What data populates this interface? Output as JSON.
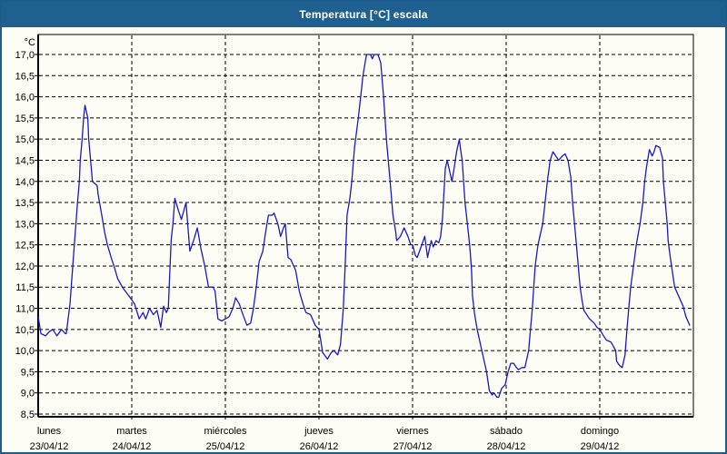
{
  "window": {
    "title": "Temperatura [°C] escala"
  },
  "colors": {
    "titlebar_bg": "#1e6191",
    "window_border": "#1d5c8c",
    "window_bg": "#fdfdf5",
    "line": "#1a1ac0",
    "grid": "#000000",
    "text": "#000000"
  },
  "chart_data": {
    "type": "line",
    "title": "Temperatura [°C] escala",
    "ylabel": "°C",
    "xlabel": "",
    "ylim": [
      8.5,
      17.0
    ],
    "ytick_step": 0.5,
    "ytick_labels": [
      "17,0",
      "16,5",
      "16,0",
      "15,5",
      "15,0",
      "14,5",
      "14,0",
      "13,5",
      "13,0",
      "12,5",
      "12,0",
      "11,5",
      "11,0",
      "10,5",
      "10,0",
      "9,5",
      "9,0",
      "8,5"
    ],
    "y_unit_label": "°C",
    "grid": "dashed-both-axes",
    "legend_position": "none",
    "x_axis_days": [
      {
        "name": "lunes",
        "date": "23/04/12"
      },
      {
        "name": "martes",
        "date": "24/04/12"
      },
      {
        "name": "miércoles",
        "date": "25/04/12"
      },
      {
        "name": "jueves",
        "date": "26/04/12"
      },
      {
        "name": "viernes",
        "date": "27/04/12"
      },
      {
        "name": "sábado",
        "date": "28/04/12"
      },
      {
        "name": "domingo",
        "date": "29/04/12"
      }
    ],
    "x_range_days": [
      0,
      7
    ],
    "series": [
      {
        "name": "Temperatura",
        "color": "#1a1ac0",
        "points": [
          [
            0,
            10.8
          ],
          [
            0.03,
            10.4
          ],
          [
            0.08,
            10.35
          ],
          [
            0.12,
            10.45
          ],
          [
            0.155,
            10.5
          ],
          [
            0.2,
            10.35
          ],
          [
            0.25,
            10.5
          ],
          [
            0.29,
            10.4
          ],
          [
            0.3,
            10.4
          ],
          [
            0.34,
            11.1
          ],
          [
            0.38,
            12.3
          ],
          [
            0.42,
            13.5
          ],
          [
            0.44,
            14.0
          ],
          [
            0.45,
            14.5
          ],
          [
            0.47,
            15.0
          ],
          [
            0.485,
            15.5
          ],
          [
            0.5,
            15.8
          ],
          [
            0.53,
            15.5
          ],
          [
            0.54,
            15.0
          ],
          [
            0.56,
            14.5
          ],
          [
            0.58,
            14.0
          ],
          [
            0.63,
            13.9
          ],
          [
            0.64,
            13.7
          ],
          [
            0.68,
            13.2
          ],
          [
            0.71,
            12.8
          ],
          [
            0.74,
            12.5
          ],
          [
            0.78,
            12.2
          ],
          [
            0.81,
            12.0
          ],
          [
            0.85,
            11.7
          ],
          [
            0.9,
            11.5
          ],
          [
            0.95,
            11.35
          ],
          [
            1.0,
            11.2
          ],
          [
            1.03,
            11.1
          ],
          [
            1.08,
            10.75
          ],
          [
            1.12,
            10.9
          ],
          [
            1.15,
            10.75
          ],
          [
            1.19,
            11.0
          ],
          [
            1.23,
            10.85
          ],
          [
            1.27,
            10.95
          ],
          [
            1.31,
            10.55
          ],
          [
            1.34,
            11.05
          ],
          [
            1.37,
            10.9
          ],
          [
            1.39,
            11.0
          ],
          [
            1.42,
            12.6
          ],
          [
            1.44,
            13.0
          ],
          [
            1.46,
            13.6
          ],
          [
            1.5,
            13.3
          ],
          [
            1.53,
            13.1
          ],
          [
            1.58,
            13.5
          ],
          [
            1.62,
            12.35
          ],
          [
            1.66,
            12.6
          ],
          [
            1.7,
            12.9
          ],
          [
            1.74,
            12.4
          ],
          [
            1.78,
            12.0
          ],
          [
            1.82,
            11.5
          ],
          [
            1.87,
            11.5
          ],
          [
            1.89,
            11.4
          ],
          [
            1.92,
            10.75
          ],
          [
            1.96,
            10.7
          ],
          [
            2.0,
            10.75
          ],
          [
            2.04,
            10.8
          ],
          [
            2.08,
            11.0
          ],
          [
            2.11,
            11.25
          ],
          [
            2.15,
            11.1
          ],
          [
            2.18,
            10.9
          ],
          [
            2.23,
            10.6
          ],
          [
            2.27,
            10.65
          ],
          [
            2.3,
            11.0
          ],
          [
            2.33,
            11.5
          ],
          [
            2.36,
            12.1
          ],
          [
            2.4,
            12.35
          ],
          [
            2.43,
            12.8
          ],
          [
            2.46,
            13.2
          ],
          [
            2.5,
            13.2
          ],
          [
            2.52,
            13.25
          ],
          [
            2.56,
            13.0
          ],
          [
            2.59,
            12.7
          ],
          [
            2.62,
            12.9
          ],
          [
            2.64,
            13.0
          ],
          [
            2.67,
            12.2
          ],
          [
            2.7,
            12.15
          ],
          [
            2.75,
            11.9
          ],
          [
            2.79,
            11.4
          ],
          [
            2.83,
            11.1
          ],
          [
            2.86,
            10.9
          ],
          [
            2.91,
            10.85
          ],
          [
            2.96,
            10.6
          ],
          [
            3.0,
            10.5
          ],
          [
            3.04,
            9.95
          ],
          [
            3.09,
            9.8
          ],
          [
            3.13,
            9.95
          ],
          [
            3.16,
            10.0
          ],
          [
            3.18,
            9.95
          ],
          [
            3.2,
            9.9
          ],
          [
            3.23,
            10.15
          ],
          [
            3.26,
            11.0
          ],
          [
            3.28,
            12.0
          ],
          [
            3.3,
            13.2
          ],
          [
            3.33,
            13.6
          ],
          [
            3.35,
            14.0
          ],
          [
            3.38,
            14.8
          ],
          [
            3.42,
            15.5
          ],
          [
            3.45,
            16.1
          ],
          [
            3.47,
            16.5
          ],
          [
            3.5,
            16.9
          ],
          [
            3.51,
            17.0
          ],
          [
            3.55,
            17.0
          ],
          [
            3.57,
            16.9
          ],
          [
            3.59,
            17.0
          ],
          [
            3.63,
            17.0
          ],
          [
            3.66,
            16.8
          ],
          [
            3.69,
            16.0
          ],
          [
            3.72,
            15.0
          ],
          [
            3.76,
            14.0
          ],
          [
            3.79,
            13.2
          ],
          [
            3.82,
            12.8
          ],
          [
            3.83,
            12.6
          ],
          [
            3.87,
            12.7
          ],
          [
            3.91,
            12.9
          ],
          [
            3.95,
            12.7
          ],
          [
            3.98,
            12.5
          ],
          [
            4.0,
            12.5
          ],
          [
            4.03,
            12.25
          ],
          [
            4.05,
            12.2
          ],
          [
            4.09,
            12.45
          ],
          [
            4.13,
            12.7
          ],
          [
            4.16,
            12.2
          ],
          [
            4.18,
            12.4
          ],
          [
            4.2,
            12.6
          ],
          [
            4.22,
            12.45
          ],
          [
            4.25,
            12.6
          ],
          [
            4.28,
            12.55
          ],
          [
            4.3,
            12.7
          ],
          [
            4.32,
            13.15
          ],
          [
            4.35,
            14.3
          ],
          [
            4.37,
            14.5
          ],
          [
            4.4,
            14.2
          ],
          [
            4.42,
            14.0
          ],
          [
            4.45,
            14.4
          ],
          [
            4.47,
            14.7
          ],
          [
            4.5,
            15.0
          ],
          [
            4.51,
            14.8
          ],
          [
            4.53,
            14.5
          ],
          [
            4.56,
            13.5
          ],
          [
            4.59,
            12.9
          ],
          [
            4.61,
            12.5
          ],
          [
            4.63,
            11.9
          ],
          [
            4.64,
            11.3
          ],
          [
            4.66,
            10.9
          ],
          [
            4.69,
            10.5
          ],
          [
            4.74,
            10.0
          ],
          [
            4.79,
            9.5
          ],
          [
            4.82,
            9.05
          ],
          [
            4.85,
            8.95
          ],
          [
            4.87,
            9.0
          ],
          [
            4.9,
            8.9
          ],
          [
            4.92,
            8.9
          ],
          [
            4.95,
            9.1
          ],
          [
            4.99,
            9.2
          ],
          [
            5.02,
            9.5
          ],
          [
            5.05,
            9.7
          ],
          [
            5.08,
            9.7
          ],
          [
            5.11,
            9.6
          ],
          [
            5.13,
            9.55
          ],
          [
            5.17,
            9.6
          ],
          [
            5.2,
            9.6
          ],
          [
            5.24,
            10.0
          ],
          [
            5.28,
            11.0
          ],
          [
            5.31,
            12.0
          ],
          [
            5.34,
            12.5
          ],
          [
            5.39,
            13.0
          ],
          [
            5.42,
            13.6
          ],
          [
            5.44,
            14.0
          ],
          [
            5.47,
            14.5
          ],
          [
            5.5,
            14.7
          ],
          [
            5.53,
            14.6
          ],
          [
            5.56,
            14.5
          ],
          [
            5.6,
            14.6
          ],
          [
            5.63,
            14.65
          ],
          [
            5.66,
            14.5
          ],
          [
            5.69,
            14.1
          ],
          [
            5.71,
            13.5
          ],
          [
            5.73,
            13.0
          ],
          [
            5.75,
            12.5
          ],
          [
            5.77,
            12.0
          ],
          [
            5.79,
            11.5
          ],
          [
            5.81,
            11.2
          ],
          [
            5.83,
            10.95
          ],
          [
            5.86,
            10.85
          ],
          [
            5.89,
            10.75
          ],
          [
            5.94,
            10.65
          ],
          [
            5.97,
            10.55
          ],
          [
            6.0,
            10.5
          ],
          [
            6.04,
            10.35
          ],
          [
            6.07,
            10.25
          ],
          [
            6.12,
            10.2
          ],
          [
            6.17,
            10.0
          ],
          [
            6.18,
            9.75
          ],
          [
            6.21,
            9.65
          ],
          [
            6.24,
            9.6
          ],
          [
            6.27,
            9.9
          ],
          [
            6.29,
            10.5
          ],
          [
            6.31,
            11.0
          ],
          [
            6.33,
            11.5
          ],
          [
            6.36,
            12.0
          ],
          [
            6.39,
            12.5
          ],
          [
            6.43,
            13.0
          ],
          [
            6.46,
            13.5
          ],
          [
            6.48,
            14.0
          ],
          [
            6.5,
            14.35
          ],
          [
            6.53,
            14.75
          ],
          [
            6.56,
            14.6
          ],
          [
            6.58,
            14.7
          ],
          [
            6.6,
            14.85
          ],
          [
            6.64,
            14.8
          ],
          [
            6.67,
            14.55
          ],
          [
            6.68,
            14.0
          ],
          [
            6.7,
            13.5
          ],
          [
            6.72,
            13.0
          ],
          [
            6.73,
            12.6
          ],
          [
            6.75,
            12.25
          ],
          [
            6.77,
            11.95
          ],
          [
            6.8,
            11.5
          ],
          [
            6.83,
            11.35
          ],
          [
            6.86,
            11.2
          ],
          [
            6.89,
            11.05
          ],
          [
            6.92,
            10.8
          ],
          [
            6.96,
            10.6
          ]
        ]
      }
    ]
  }
}
